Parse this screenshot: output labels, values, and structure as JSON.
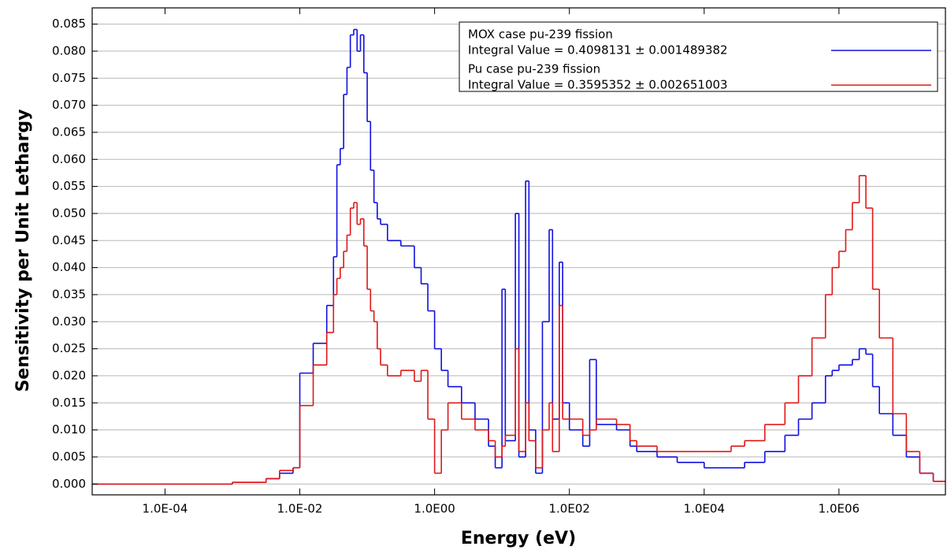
{
  "chart_data": {
    "type": "step",
    "x_label": "Energy (eV)",
    "y_label": "Sensitivity per Unit Lethargy",
    "xscale": "log",
    "xlim": [
      8.3e-06,
      38000000.0
    ],
    "ylim": [
      -0.002,
      0.088
    ],
    "xticks": [
      {
        "value": 0.0001,
        "label": "1.0E-04"
      },
      {
        "value": 0.01,
        "label": "1.0E-02"
      },
      {
        "value": 1,
        "label": "1.0E00"
      },
      {
        "value": 100,
        "label": "1.0E02"
      },
      {
        "value": 10000,
        "label": "1.0E04"
      },
      {
        "value": 1000000,
        "label": "1.0E06"
      }
    ],
    "yticks": [
      {
        "value": 0,
        "label": "0.000"
      },
      0.005,
      {
        "value": 0.01,
        "label": "0.010"
      },
      0.015,
      {
        "value": 0.02,
        "label": "0.020"
      },
      0.025,
      {
        "value": 0.03,
        "label": "0.030"
      },
      0.035,
      {
        "value": 0.04,
        "label": "0.040"
      },
      0.045,
      {
        "value": 0.05,
        "label": "0.050"
      },
      0.055,
      {
        "value": 0.06,
        "label": "0.060"
      },
      0.065,
      {
        "value": 0.07,
        "label": "0.070"
      },
      0.075,
      {
        "value": 0.08,
        "label": "0.080"
      },
      0.085
    ],
    "grid": true,
    "legend_position": "upper right",
    "x": [
      8.3e-06,
      0.0001,
      0.001,
      0.00316,
      0.00501,
      0.00794,
      0.01,
      0.0158,
      0.0251,
      0.0316,
      0.0355,
      0.0398,
      0.0447,
      0.0501,
      0.0562,
      0.0631,
      0.0708,
      0.0794,
      0.0891,
      0.1,
      0.112,
      0.126,
      0.141,
      0.158,
      0.2,
      0.316,
      0.501,
      0.631,
      0.794,
      1,
      1.26,
      1.58,
      2.51,
      3.98,
      6.31,
      7.94,
      10,
      11.2,
      15.8,
      17.8,
      22.4,
      25.1,
      31.6,
      39.8,
      50.1,
      56.2,
      70.8,
      79.4,
      100,
      158,
      200,
      251,
      501,
      794,
      1000,
      2000,
      3980,
      10000,
      25100,
      39800,
      79400,
      158000,
      251000,
      398000,
      631000,
      794000,
      1000000,
      1260000,
      1580000,
      2000000,
      2510000,
      3160000,
      3980000,
      6310000,
      10000000,
      15800000,
      25100000
    ],
    "series": [
      {
        "name": "MOX case pu-239 fission",
        "integral_label": " Integral Value = 0.4098131 ± 0.001489382",
        "color": "#1010e0",
        "values": [
          0,
          0,
          0.0003,
          0.001,
          0.002,
          0.003,
          0.0205,
          0.026,
          0.033,
          0.042,
          0.059,
          0.062,
          0.072,
          0.077,
          0.083,
          0.084,
          0.08,
          0.083,
          0.076,
          0.067,
          0.058,
          0.052,
          0.049,
          0.048,
          0.045,
          0.044,
          0.04,
          0.037,
          0.032,
          0.025,
          0.021,
          0.018,
          0.015,
          0.012,
          0.007,
          0.003,
          0.036,
          0.008,
          0.05,
          0.005,
          0.056,
          0.01,
          0.002,
          0.03,
          0.047,
          0.012,
          0.041,
          0.015,
          0.01,
          0.007,
          0.023,
          0.011,
          0.01,
          0.007,
          0.006,
          0.005,
          0.004,
          0.003,
          0.003,
          0.004,
          0.006,
          0.009,
          0.012,
          0.015,
          0.02,
          0.021,
          0.022,
          0.022,
          0.023,
          0.025,
          0.024,
          0.018,
          0.013,
          0.009,
          0.005,
          0.002,
          0.0005
        ]
      },
      {
        "name": "Pu case pu-239 fission",
        "integral_label": " Integral Value = 0.3595352 ± 0.002651003",
        "color": "#e01818",
        "values": [
          0,
          0,
          0.0003,
          0.001,
          0.0025,
          0.003,
          0.0145,
          0.022,
          0.028,
          0.035,
          0.038,
          0.04,
          0.043,
          0.046,
          0.051,
          0.052,
          0.048,
          0.049,
          0.044,
          0.036,
          0.032,
          0.03,
          0.025,
          0.022,
          0.02,
          0.021,
          0.019,
          0.021,
          0.012,
          0.002,
          0.01,
          0.015,
          0.012,
          0.01,
          0.008,
          0.005,
          0.007,
          0.009,
          0.025,
          0.006,
          0.015,
          0.008,
          0.003,
          0.01,
          0.015,
          0.006,
          0.033,
          0.012,
          0.012,
          0.009,
          0.01,
          0.012,
          0.011,
          0.008,
          0.007,
          0.006,
          0.006,
          0.006,
          0.007,
          0.008,
          0.011,
          0.015,
          0.02,
          0.027,
          0.035,
          0.04,
          0.043,
          0.047,
          0.052,
          0.057,
          0.051,
          0.036,
          0.027,
          0.013,
          0.006,
          0.002,
          0.0005
        ]
      }
    ]
  }
}
